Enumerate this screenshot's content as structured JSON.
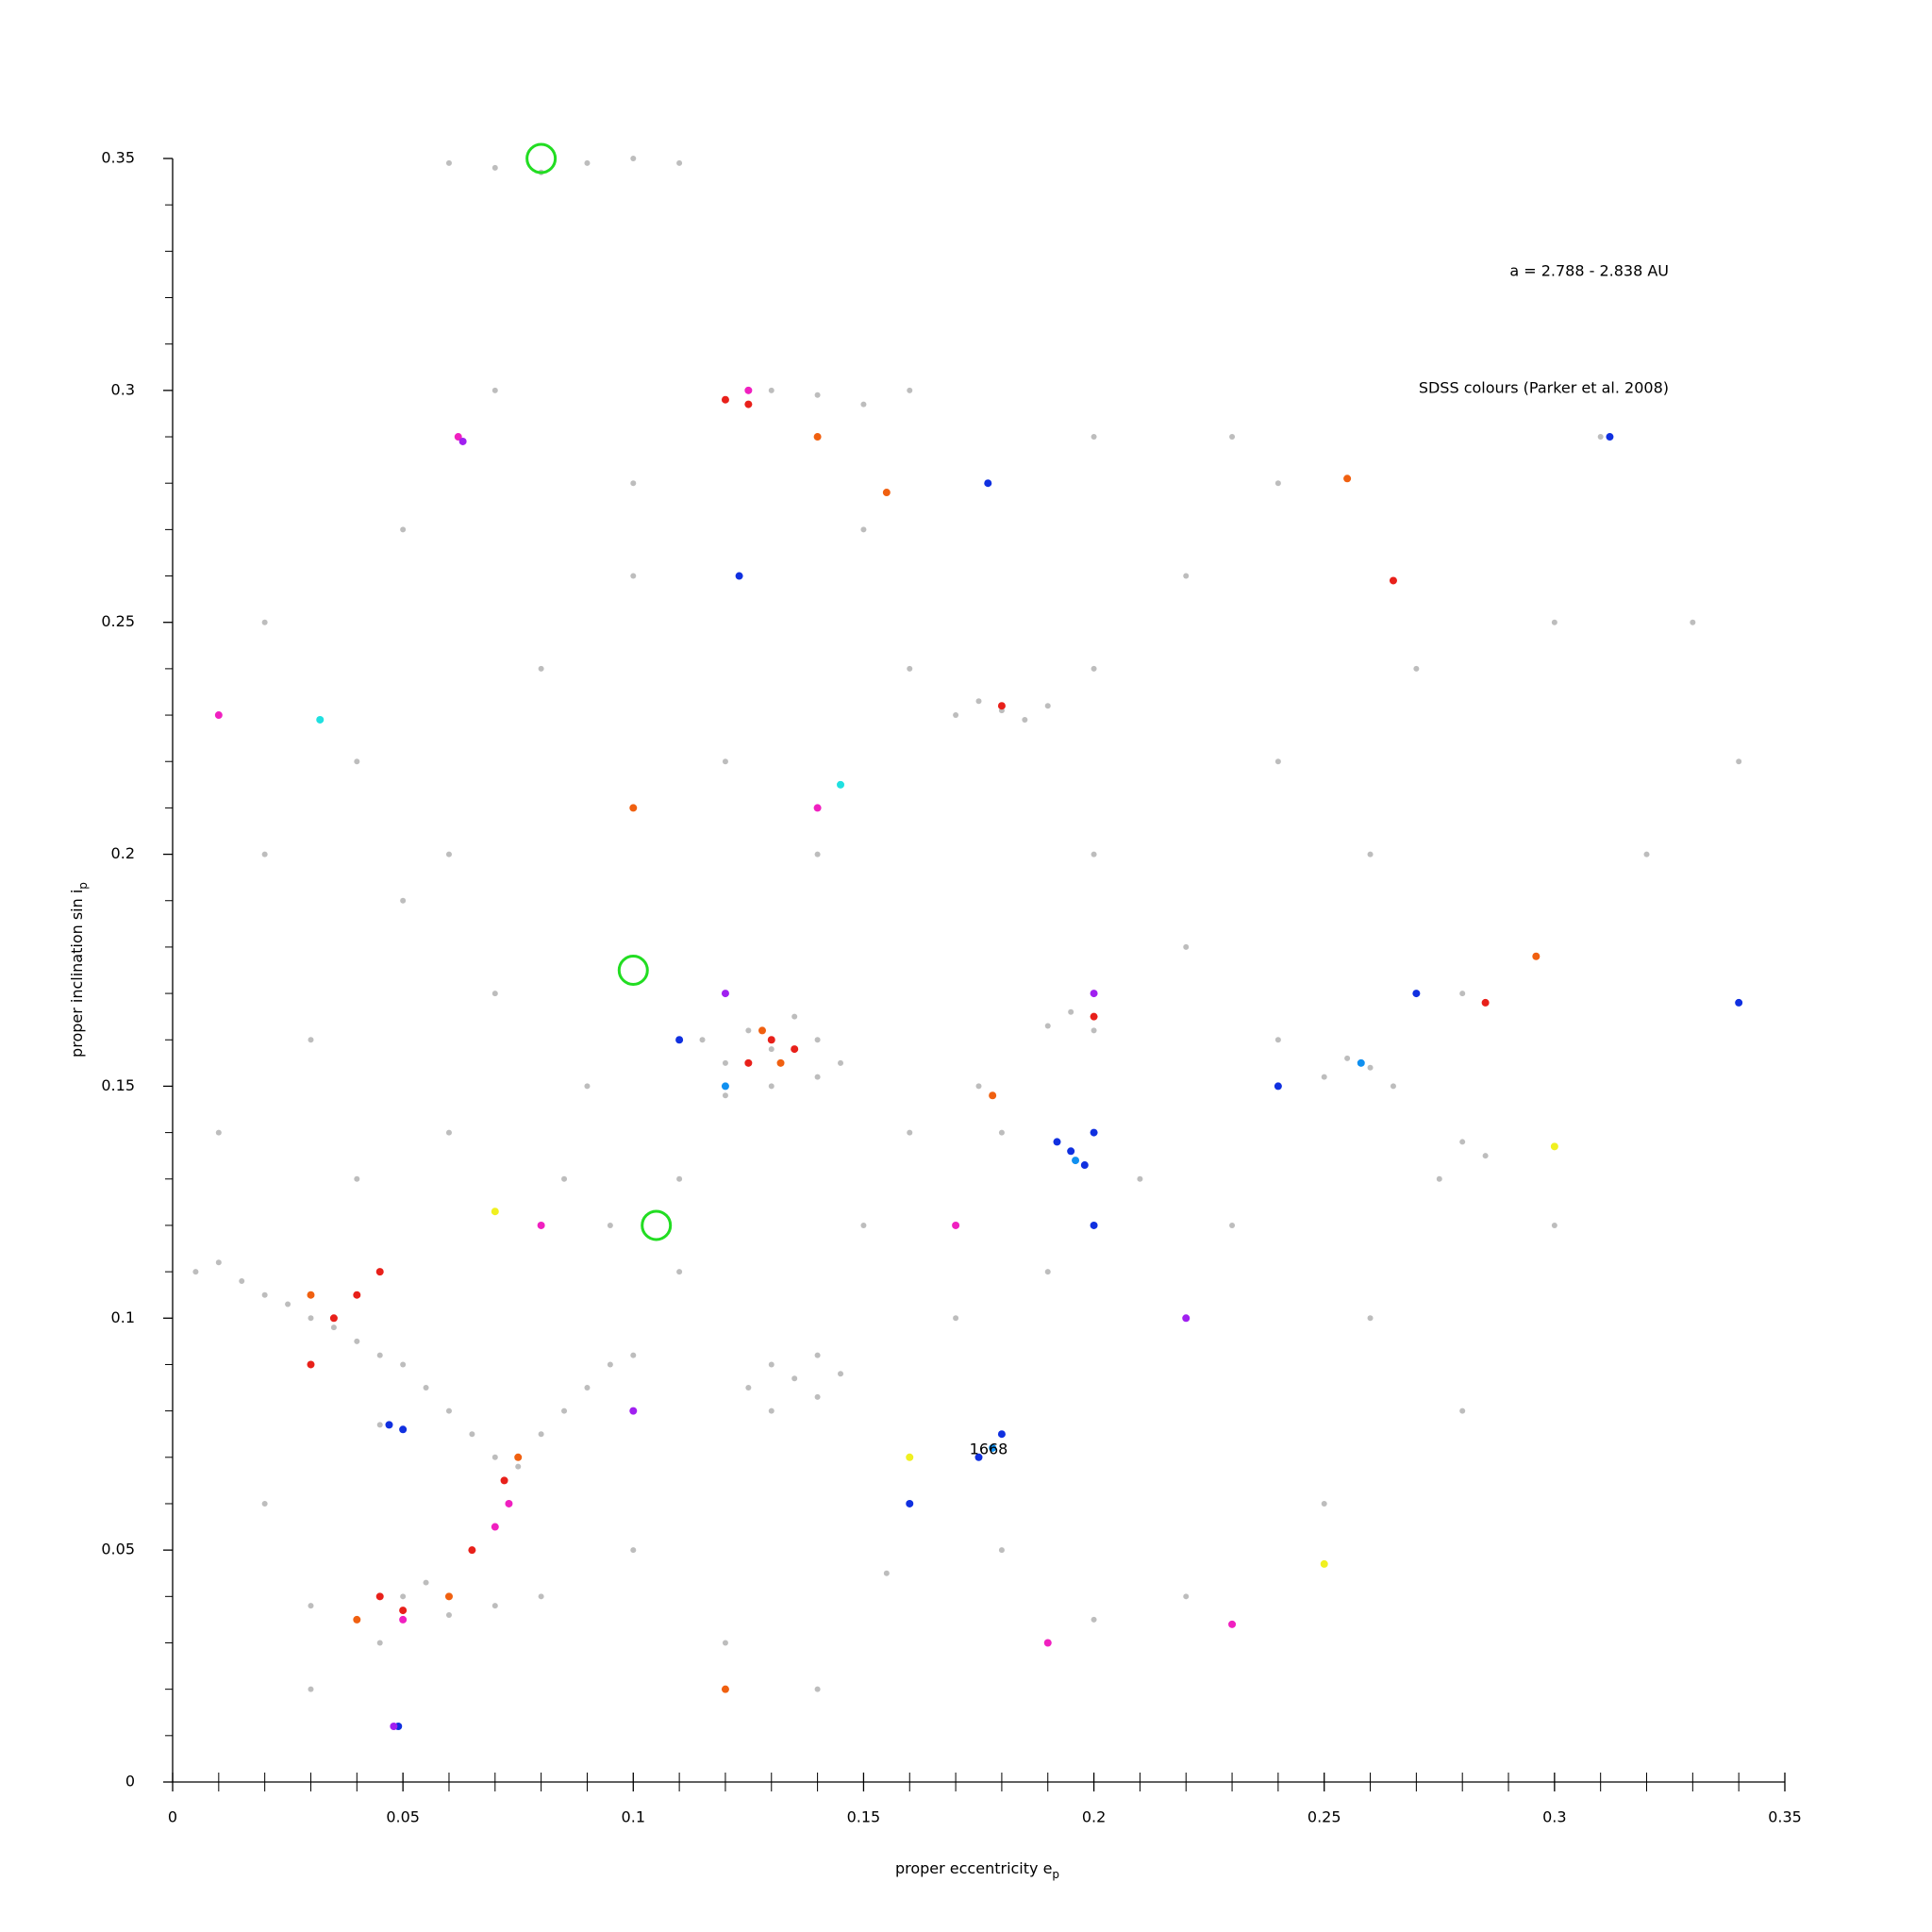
{
  "chart_data": {
    "type": "scatter",
    "xlabel": "proper eccentricity e",
    "xlabel_sub": "p",
    "ylabel": "proper inclination sin i",
    "ylabel_sub": "p",
    "annotations": [
      "a = 2.788 - 2.838 AU",
      "SDSS colours (Parker et al. 2008)",
      "1668"
    ],
    "xlim": [
      0,
      0.35
    ],
    "ylim": [
      0,
      0.35
    ],
    "xticks": [
      0,
      0.05,
      0.1,
      0.15,
      0.2,
      0.25,
      0.3,
      0.35
    ],
    "yticks": [
      0,
      0.05,
      0.1,
      0.15,
      0.2,
      0.25,
      0.3,
      0.35
    ],
    "xminorticks": [
      0.01,
      0.02,
      0.03,
      0.04,
      0.06,
      0.07,
      0.08,
      0.09,
      0.11,
      0.12,
      0.13,
      0.14,
      0.16,
      0.17,
      0.18,
      0.19,
      0.21,
      0.22,
      0.23,
      0.24,
      0.26,
      0.27,
      0.28,
      0.29,
      0.31,
      0.32,
      0.33,
      0.34
    ],
    "yminorticks": [
      0.01,
      0.02,
      0.03,
      0.04,
      0.06,
      0.07,
      0.08,
      0.09,
      0.11,
      0.12,
      0.13,
      0.14,
      0.16,
      0.17,
      0.18,
      0.19,
      0.21,
      0.22,
      0.23,
      0.24,
      0.26,
      0.27,
      0.28,
      0.29,
      0.31,
      0.32,
      0.33,
      0.34
    ],
    "series": [
      {
        "color": "#bdbdbd",
        "marker": "dot",
        "x": [
          0.005,
          0.01,
          0.015,
          0.02,
          0.025,
          0.03,
          0.035,
          0.04,
          0.045,
          0.05,
          0.055,
          0.06,
          0.065,
          0.07,
          0.075,
          0.08,
          0.085,
          0.09,
          0.095,
          0.1
        ],
        "values": [
          0.11,
          0.112,
          0.108,
          0.105,
          0.103,
          0.1,
          0.098,
          0.095,
          0.092,
          0.09,
          0.085,
          0.08,
          0.075,
          0.07,
          0.068,
          0.075,
          0.08,
          0.085,
          0.09,
          0.092
        ]
      },
      {
        "color": "#bdbdbd",
        "marker": "dot",
        "x": [
          0.115,
          0.12,
          0.125,
          0.13,
          0.135,
          0.14,
          0.145,
          0.12,
          0.13,
          0.14,
          0.125,
          0.13,
          0.135,
          0.14,
          0.145,
          0.13,
          0.14,
          0.03,
          0.04,
          0.05,
          0.06,
          0.07,
          0.08,
          0.045,
          0.055
        ],
        "values": [
          0.16,
          0.155,
          0.162,
          0.158,
          0.165,
          0.16,
          0.155,
          0.148,
          0.15,
          0.152,
          0.085,
          0.09,
          0.087,
          0.083,
          0.088,
          0.08,
          0.092,
          0.038,
          0.035,
          0.04,
          0.036,
          0.038,
          0.04,
          0.03,
          0.043
        ]
      },
      {
        "color": "#bdbdbd",
        "marker": "dot",
        "x": [
          0.17,
          0.175,
          0.18,
          0.185,
          0.19,
          0.19,
          0.195,
          0.2,
          0.25,
          0.255,
          0.26,
          0.265,
          0.275,
          0.28,
          0.285,
          0.06,
          0.07,
          0.08,
          0.09,
          0.1,
          0.11,
          0.12,
          0.13,
          0.14,
          0.15,
          0.16
        ],
        "values": [
          0.23,
          0.233,
          0.231,
          0.229,
          0.232,
          0.163,
          0.166,
          0.162,
          0.152,
          0.156,
          0.154,
          0.15,
          0.13,
          0.138,
          0.135,
          0.349,
          0.348,
          0.347,
          0.349,
          0.35,
          0.349,
          0.298,
          0.3,
          0.299,
          0.297,
          0.3
        ]
      },
      {
        "color": "#bdbdbd",
        "marker": "dot",
        "x": [
          0.02,
          0.04,
          0.06,
          0.08,
          0.1,
          0.12,
          0.14,
          0.16,
          0.2,
          0.22,
          0.24,
          0.26,
          0.28,
          0.22,
          0.24,
          0.2,
          0.3,
          0.32,
          0.34,
          0.3,
          0.28,
          0.25,
          0.22,
          0.2,
          0.18,
          0.16,
          0.155,
          0.17,
          0.19,
          0.21,
          0.23,
          0.26,
          0.11,
          0.09,
          0.07,
          0.05,
          0.03,
          0.01,
          0.02,
          0.03,
          0.1,
          0.12,
          0.14,
          0.11,
          0.095,
          0.085,
          0.06,
          0.04,
          0.15,
          0.16,
          0.18,
          0.175,
          0.123,
          0.048,
          0.045,
          0.15,
          0.1,
          0.07,
          0.05,
          0.02,
          0.2,
          0.24,
          0.27,
          0.23,
          0.31,
          0.33
        ],
        "values": [
          0.25,
          0.22,
          0.2,
          0.24,
          0.26,
          0.22,
          0.2,
          0.24,
          0.2,
          0.18,
          0.16,
          0.2,
          0.17,
          0.26,
          0.28,
          0.29,
          0.25,
          0.2,
          0.22,
          0.12,
          0.08,
          0.06,
          0.04,
          0.035,
          0.05,
          0.06,
          0.045,
          0.1,
          0.11,
          0.13,
          0.12,
          0.1,
          0.13,
          0.15,
          0.17,
          0.19,
          0.16,
          0.14,
          0.06,
          0.02,
          0.05,
          0.03,
          0.02,
          0.11,
          0.12,
          0.13,
          0.14,
          0.13,
          0.12,
          0.14,
          0.14,
          0.15,
          0.26,
          0.012,
          0.077,
          0.27,
          0.28,
          0.3,
          0.27,
          0.2,
          0.24,
          0.22,
          0.24,
          0.29,
          0.29,
          0.25
        ]
      },
      {
        "color": "#e8201a",
        "marker": "dot",
        "x": [
          0.04,
          0.035,
          0.045,
          0.05,
          0.045,
          0.13,
          0.125,
          0.135,
          0.12,
          0.125,
          0.072,
          0.18,
          0.265,
          0.2,
          0.065,
          0.285,
          0.03
        ],
        "values": [
          0.105,
          0.1,
          0.11,
          0.037,
          0.04,
          0.16,
          0.155,
          0.158,
          0.298,
          0.297,
          0.065,
          0.232,
          0.259,
          0.165,
          0.05,
          0.168,
          0.09
        ]
      },
      {
        "color": "#f06010",
        "marker": "dot",
        "x": [
          0.128,
          0.132,
          0.03,
          0.06,
          0.04,
          0.14,
          0.155,
          0.1,
          0.075,
          0.296,
          0.255,
          0.12,
          0.178
        ],
        "values": [
          0.162,
          0.155,
          0.105,
          0.04,
          0.035,
          0.29,
          0.278,
          0.21,
          0.07,
          0.178,
          0.281,
          0.02,
          0.148
        ]
      },
      {
        "color": "#f020c0",
        "marker": "dot",
        "x": [
          0.073,
          0.07,
          0.062,
          0.125,
          0.05,
          0.19,
          0.23,
          0.14,
          0.08,
          0.17,
          0.01
        ],
        "values": [
          0.06,
          0.055,
          0.29,
          0.3,
          0.035,
          0.03,
          0.034,
          0.21,
          0.12,
          0.12,
          0.23
        ]
      },
      {
        "color": "#1030e0",
        "marker": "dot",
        "x": [
          0.195,
          0.2,
          0.198,
          0.192,
          0.047,
          0.05,
          0.175,
          0.18,
          0.16,
          0.34,
          0.312,
          0.27,
          0.24,
          0.2,
          0.11,
          0.123,
          0.177,
          0.049
        ],
        "values": [
          0.136,
          0.14,
          0.133,
          0.138,
          0.077,
          0.076,
          0.07,
          0.075,
          0.06,
          0.168,
          0.29,
          0.17,
          0.15,
          0.12,
          0.16,
          0.26,
          0.28,
          0.012
        ]
      },
      {
        "color": "#a020f0",
        "marker": "dot",
        "x": [
          0.048,
          0.063,
          0.1,
          0.12,
          0.2,
          0.22
        ],
        "values": [
          0.012,
          0.289,
          0.08,
          0.17,
          0.17,
          0.1
        ]
      },
      {
        "color": "#1090f0",
        "marker": "dot",
        "x": [
          0.196,
          0.178,
          0.258,
          0.12
        ],
        "values": [
          0.134,
          0.072,
          0.155,
          0.15
        ]
      },
      {
        "color": "#f0f020",
        "marker": "dot",
        "x": [
          0.07,
          0.25,
          0.3,
          0.16
        ],
        "values": [
          0.123,
          0.047,
          0.137,
          0.07
        ]
      },
      {
        "color": "#20e0e0",
        "marker": "dot",
        "x": [
          0.032,
          0.145
        ],
        "values": [
          0.229,
          0.215
        ]
      },
      {
        "color": "#22dd22",
        "marker": "ring",
        "x": [
          0.08,
          0.1,
          0.105
        ],
        "values": [
          0.35,
          0.175,
          0.12
        ]
      }
    ]
  }
}
